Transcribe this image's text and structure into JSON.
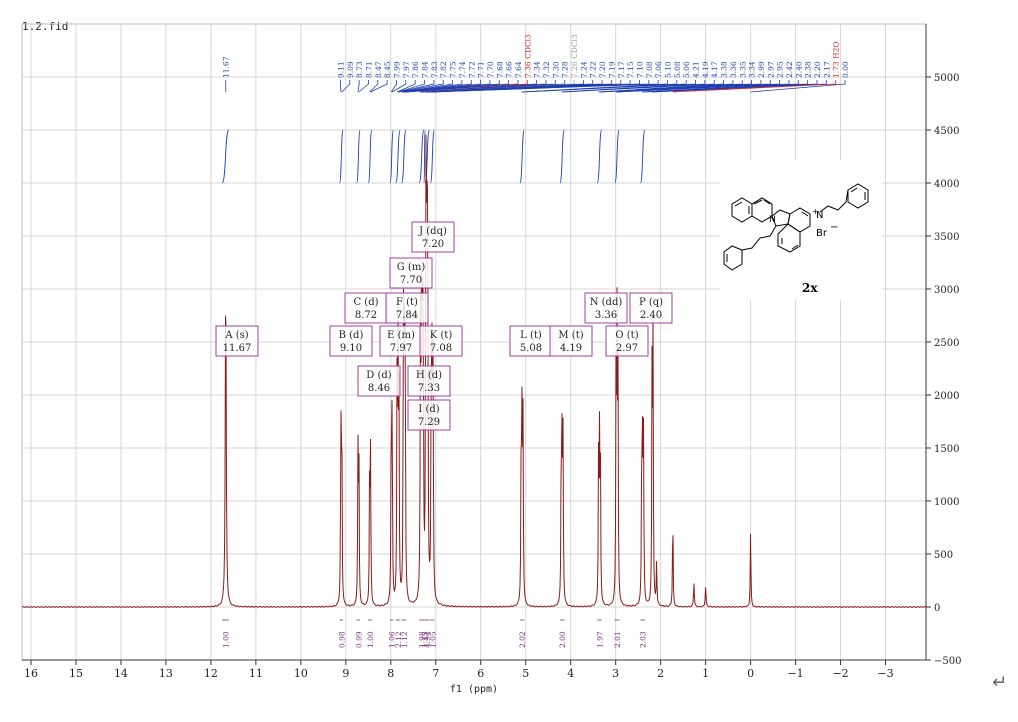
{
  "file_name": "1.2.fid",
  "return_mark": "↵",
  "compound": {
    "label": "2x",
    "charge": "+",
    "nitrogen": "N",
    "counterion": "Br",
    "counterion_charge": "−"
  },
  "chart_data": {
    "type": "line",
    "xlabel": "f1 (ppm)",
    "ylabel": "",
    "xlim": [
      16.2,
      -3.9
    ],
    "ylim": [
      -500,
      5500
    ],
    "x_ticks": [
      "16",
      "15",
      "14",
      "13",
      "12",
      "11",
      "10",
      "9",
      "8",
      "7",
      "6",
      "5",
      "4",
      "3",
      "2",
      "1",
      "0",
      "−1",
      "−2",
      "−3"
    ],
    "x_tick_values": [
      16,
      15,
      14,
      13,
      12,
      11,
      10,
      9,
      8,
      7,
      6,
      5,
      4,
      3,
      2,
      1,
      0,
      -1,
      -2,
      -3
    ],
    "y_ticks": [
      "5000",
      "4500",
      "4000",
      "3500",
      "3000",
      "2500",
      "2000",
      "1500",
      "1000",
      "500",
      "0",
      "−500"
    ],
    "y_tick_values": [
      5000,
      4500,
      4000,
      3500,
      3000,
      2500,
      2000,
      1500,
      1000,
      500,
      0,
      -500
    ],
    "grid": true,
    "peaks": [
      {
        "ppm": 11.67,
        "height": 3280,
        "w": 0.012
      },
      {
        "ppm": 9.11,
        "height": 1720,
        "w": 0.008
      },
      {
        "ppm": 9.09,
        "height": 1780,
        "w": 0.008
      },
      {
        "ppm": 8.73,
        "height": 1420,
        "w": 0.008
      },
      {
        "ppm": 8.71,
        "height": 1470,
        "w": 0.008
      },
      {
        "ppm": 8.47,
        "height": 1350,
        "w": 0.008
      },
      {
        "ppm": 8.45,
        "height": 1400,
        "w": 0.008
      },
      {
        "ppm": 7.99,
        "height": 1750,
        "w": 0.008
      },
      {
        "ppm": 7.97,
        "height": 1850,
        "w": 0.008
      },
      {
        "ppm": 7.86,
        "height": 2100,
        "w": 0.008
      },
      {
        "ppm": 7.84,
        "height": 2300,
        "w": 0.008
      },
      {
        "ppm": 7.82,
        "height": 2000,
        "w": 0.008
      },
      {
        "ppm": 7.72,
        "height": 2600,
        "w": 0.008
      },
      {
        "ppm": 7.7,
        "height": 2750,
        "w": 0.008
      },
      {
        "ppm": 7.68,
        "height": 2500,
        "w": 0.008
      },
      {
        "ppm": 7.34,
        "height": 2400,
        "w": 0.008
      },
      {
        "ppm": 7.32,
        "height": 2500,
        "w": 0.008
      },
      {
        "ppm": 7.3,
        "height": 2900,
        "w": 0.008
      },
      {
        "ppm": 7.28,
        "height": 2700,
        "w": 0.008
      },
      {
        "ppm": 7.22,
        "height": 3900,
        "w": 0.008
      },
      {
        "ppm": 7.2,
        "height": 3850,
        "w": 0.008
      },
      {
        "ppm": 7.18,
        "height": 3600,
        "w": 0.008
      },
      {
        "ppm": 7.1,
        "height": 2300,
        "w": 0.008
      },
      {
        "ppm": 7.08,
        "height": 2400,
        "w": 0.008
      },
      {
        "ppm": 7.06,
        "height": 2100,
        "w": 0.008
      },
      {
        "ppm": 5.1,
        "height": 1700,
        "w": 0.008
      },
      {
        "ppm": 5.08,
        "height": 1780,
        "w": 0.008
      },
      {
        "ppm": 5.06,
        "height": 1650,
        "w": 0.008
      },
      {
        "ppm": 4.21,
        "height": 1550,
        "w": 0.008
      },
      {
        "ppm": 4.19,
        "height": 1620,
        "w": 0.008
      },
      {
        "ppm": 4.17,
        "height": 1500,
        "w": 0.008
      },
      {
        "ppm": 3.38,
        "height": 1400,
        "w": 0.008
      },
      {
        "ppm": 3.36,
        "height": 1460,
        "w": 0.008
      },
      {
        "ppm": 3.34,
        "height": 1380,
        "w": 0.008
      },
      {
        "ppm": 2.99,
        "height": 2300,
        "w": 0.008
      },
      {
        "ppm": 2.97,
        "height": 2400,
        "w": 0.008
      },
      {
        "ppm": 2.95,
        "height": 2200,
        "w": 0.008
      },
      {
        "ppm": 2.42,
        "height": 1550,
        "w": 0.008
      },
      {
        "ppm": 2.4,
        "height": 1600,
        "w": 0.008
      },
      {
        "ppm": 2.38,
        "height": 1500,
        "w": 0.008
      },
      {
        "ppm": 2.19,
        "height": 2350,
        "w": 0.008
      },
      {
        "ppm": 2.17,
        "height": 2400,
        "w": 0.008
      },
      {
        "ppm": 2.09,
        "height": 420,
        "w": 0.008
      },
      {
        "ppm": 1.73,
        "height": 900,
        "w": 0.008
      },
      {
        "ppm": 1.26,
        "height": 230,
        "w": 0.01
      },
      {
        "ppm": 1.0,
        "height": 200,
        "w": 0.01
      },
      {
        "ppm": 0.0,
        "height": 740,
        "w": 0.008
      }
    ],
    "peak_ppm_labels": [
      "11.67",
      "9.11",
      "9.09",
      "8.73",
      "8.71",
      "8.47",
      "8.45",
      "7.99",
      "7.97",
      "7.86",
      "7.84",
      "7.83",
      "7.82",
      "7.75",
      "7.74",
      "7.72",
      "7.71",
      "7.70",
      "7.68",
      "7.66",
      "7.64",
      "7.36 CDCl3",
      "7.34",
      "7.32",
      "7.30",
      "7.28",
      "7.26 CDCl3",
      "7.24",
      "7.22",
      "7.20",
      "7.19",
      "7.17",
      "7.15",
      "7.10",
      "7.08",
      "7.06",
      "5.10",
      "5.08",
      "5.06",
      "4.21",
      "4.19",
      "4.17",
      "3.38",
      "3.36",
      "3.35",
      "3.34",
      "2.99",
      "2.97",
      "2.95",
      "2.42",
      "2.40",
      "2.38",
      "2.20",
      "2.17",
      "1.73 H2O",
      "0.00"
    ],
    "peak_label_colors": {
      "default": "#1f3fb0",
      "solvent": "#e02020",
      "reference": "#999999"
    },
    "multiplets": [
      {
        "label": "A (s)",
        "ppm_text": "11.67",
        "ppm": 11.67
      },
      {
        "label": "B (d)",
        "ppm_text": "9.10",
        "ppm": 9.1
      },
      {
        "label": "C (d)",
        "ppm_text": "8.72",
        "ppm": 8.72
      },
      {
        "label": "D (d)",
        "ppm_text": "8.46",
        "ppm": 8.46
      },
      {
        "label": "E (m)",
        "ppm_text": "7.97",
        "ppm": 7.97
      },
      {
        "label": "F (t)",
        "ppm_text": "7.84",
        "ppm": 7.84
      },
      {
        "label": "G (m)",
        "ppm_text": "7.70",
        "ppm": 7.7
      },
      {
        "label": "H (d)",
        "ppm_text": "7.33",
        "ppm": 7.33
      },
      {
        "label": "I (d)",
        "ppm_text": "7.29",
        "ppm": 7.29
      },
      {
        "label": "J (dq)",
        "ppm_text": "7.20",
        "ppm": 7.2
      },
      {
        "label": "K (t)",
        "ppm_text": "7.08",
        "ppm": 7.08
      },
      {
        "label": "L (t)",
        "ppm_text": "5.08",
        "ppm": 5.08
      },
      {
        "label": "M (t)",
        "ppm_text": "4.19",
        "ppm": 4.19
      },
      {
        "label": "N (dd)",
        "ppm_text": "3.36",
        "ppm": 3.36
      },
      {
        "label": "O (t)",
        "ppm_text": "2.97",
        "ppm": 2.97
      },
      {
        "label": "P (q)",
        "ppm_text": "2.40",
        "ppm": 2.4
      }
    ],
    "integrals": [
      {
        "value": "1.00",
        "from": 11.75,
        "to": 11.6
      },
      {
        "value": "0.98",
        "from": 9.14,
        "to": 9.06
      },
      {
        "value": "0.99",
        "from": 8.76,
        "to": 8.68
      },
      {
        "value": "1.00",
        "from": 8.5,
        "to": 8.42
      },
      {
        "value": "1.06",
        "from": 8.02,
        "to": 7.94
      },
      {
        "value": "2.12",
        "from": 7.89,
        "to": 7.79
      },
      {
        "value": "1.12",
        "from": 7.76,
        "to": 7.66
      },
      {
        "value": "1.98",
        "from": 7.37,
        "to": 7.26
      },
      {
        "value": "1.15",
        "from": 7.26,
        "to": 7.24
      },
      {
        "value": "4.94",
        "from": 7.24,
        "to": 7.14
      },
      {
        "value": "1.05",
        "from": 7.12,
        "to": 7.03
      },
      {
        "value": "2.02",
        "from": 5.13,
        "to": 5.03
      },
      {
        "value": "2.00",
        "from": 4.24,
        "to": 4.14
      },
      {
        "value": "1.97",
        "from": 3.41,
        "to": 3.31
      },
      {
        "value": "2.01",
        "from": 3.02,
        "to": 2.92
      },
      {
        "value": "2.03",
        "from": 2.45,
        "to": 2.35
      }
    ]
  }
}
